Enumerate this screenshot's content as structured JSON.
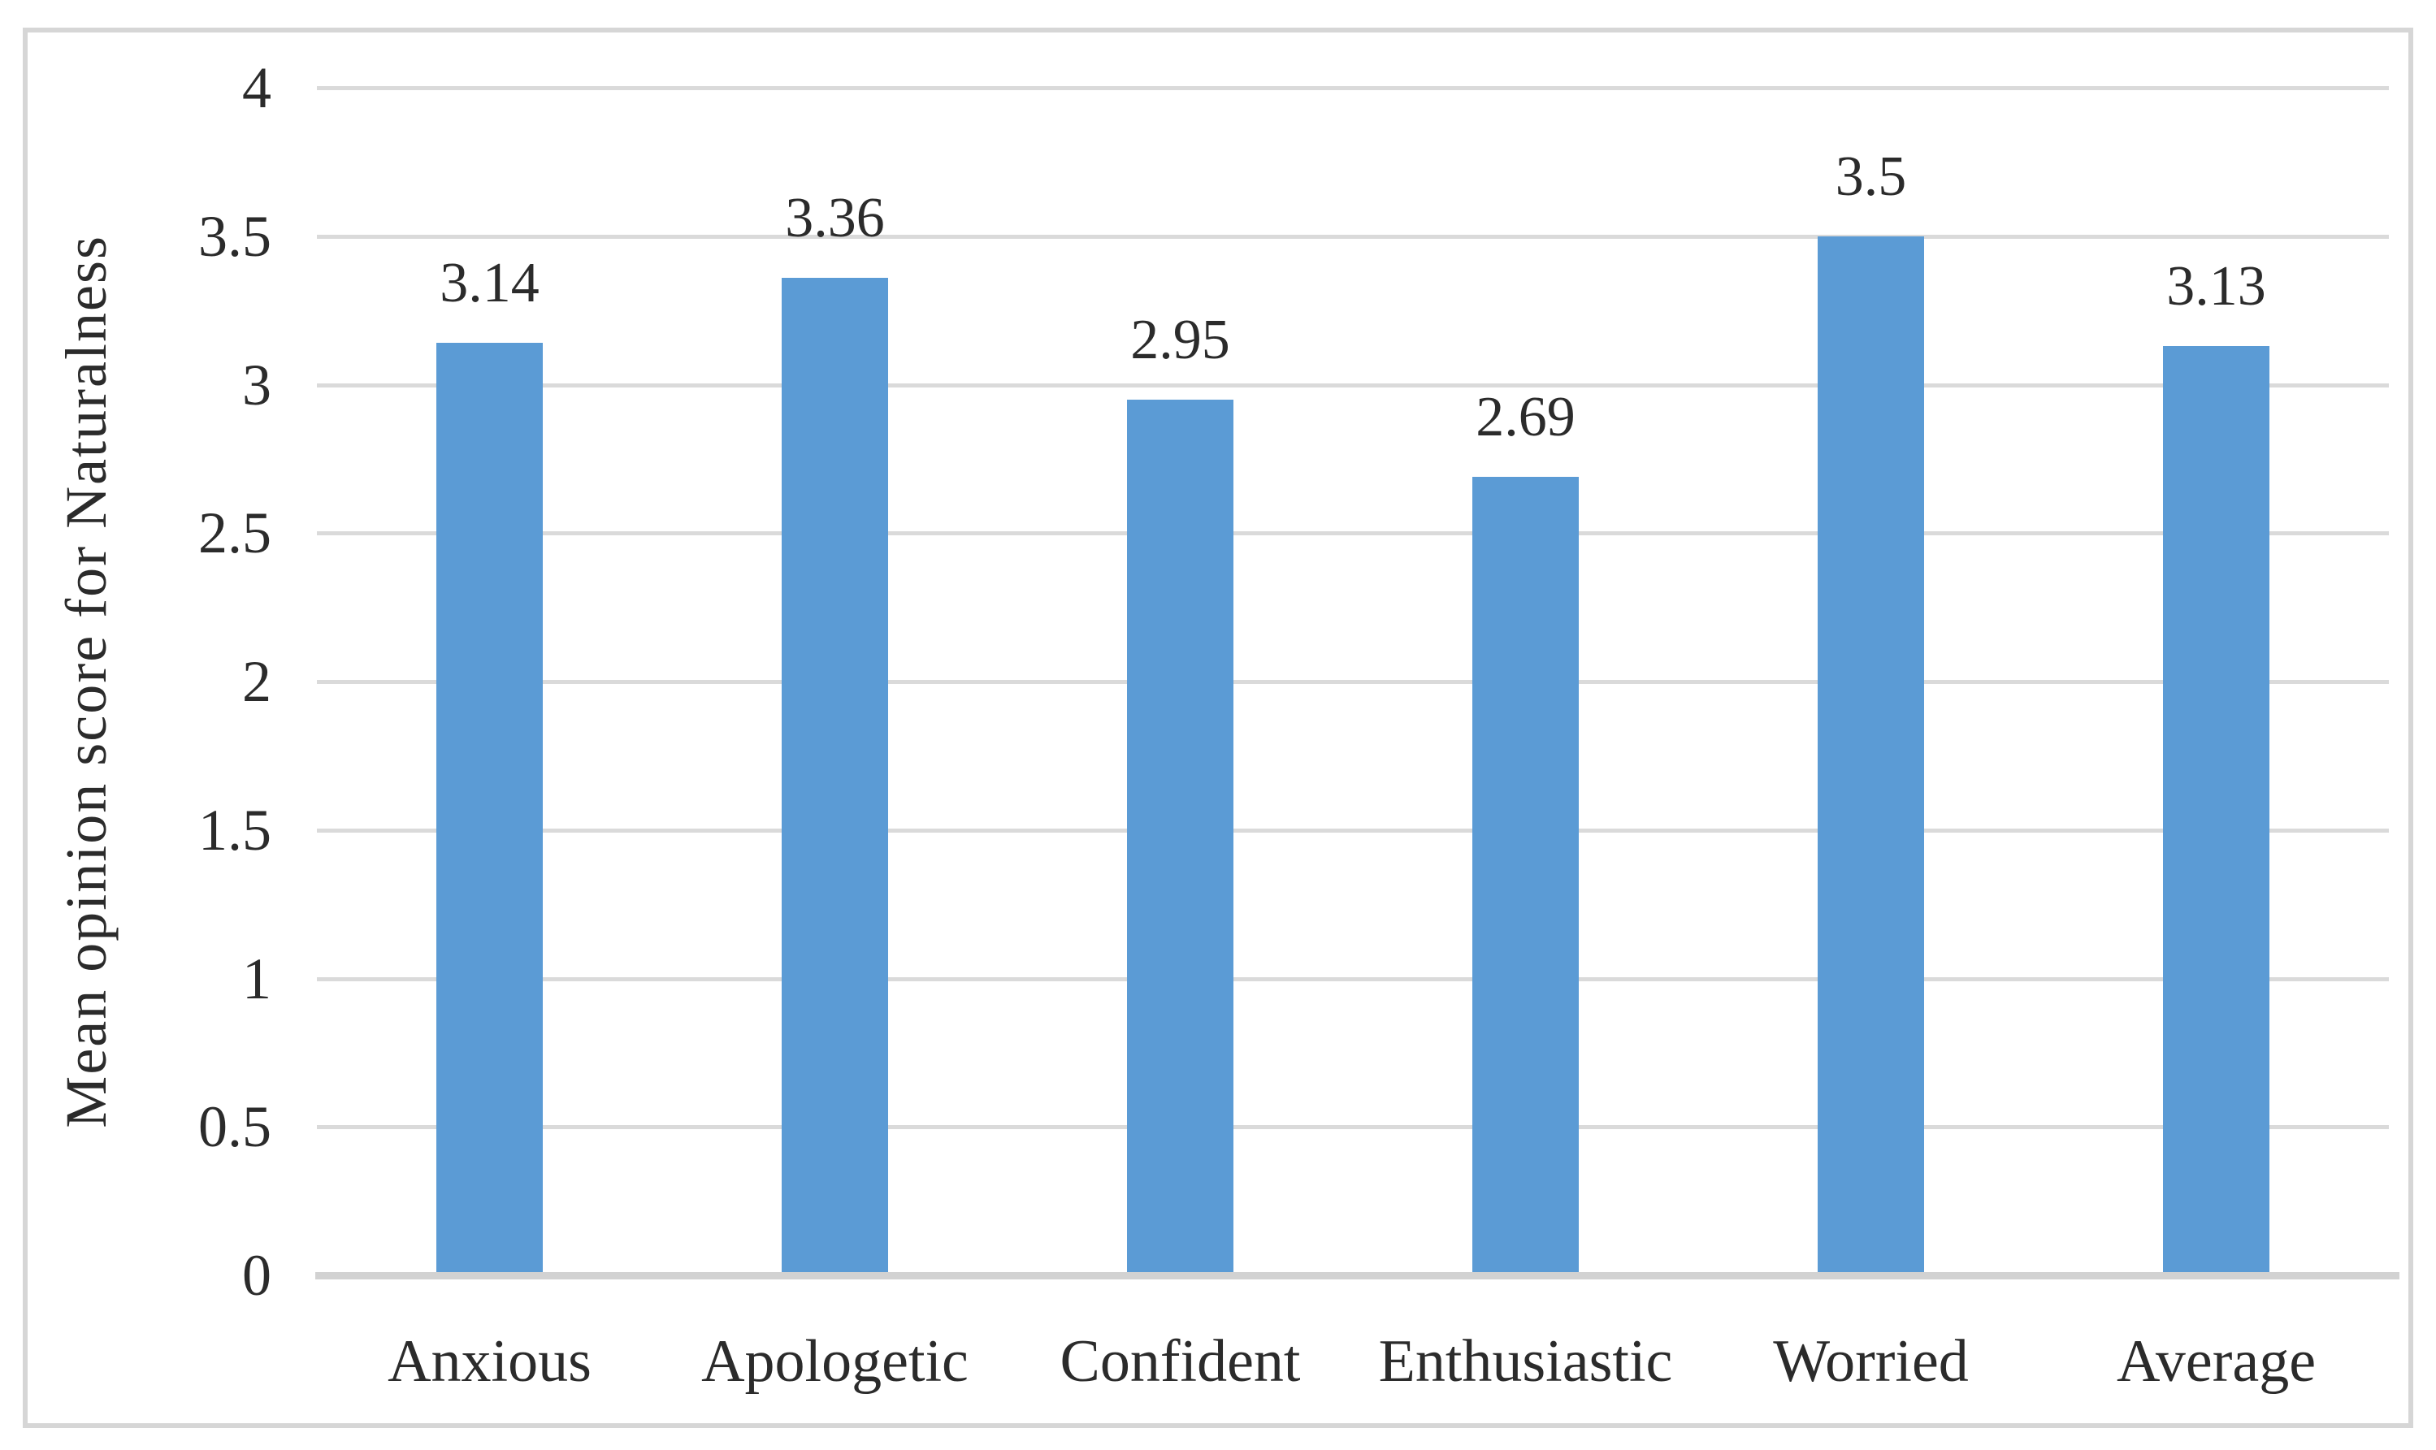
{
  "chart_data": {
    "type": "bar",
    "title": "",
    "categories": [
      "Anxious",
      "Apologetic",
      "Confident",
      "Enthusiastic",
      "Worried",
      "Average"
    ],
    "values": [
      3.14,
      3.36,
      2.95,
      2.69,
      3.5,
      3.13
    ],
    "data_labels": [
      "3.14",
      "3.36",
      "2.95",
      "2.69",
      "3.5",
      "3.13"
    ],
    "series_name": "Mean opinion score",
    "xlabel": "",
    "ylabel": "Mean opinion score for Naturalness",
    "ylim": [
      0,
      4
    ],
    "ytick_step": 0.5,
    "yticks": [
      "0",
      "0.5",
      "1",
      "1.5",
      "2",
      "2.5",
      "3",
      "3.5",
      "4"
    ],
    "grid": "horizontal-on",
    "legend": "none",
    "colors": {
      "bar": "#5B9BD5",
      "gridline": "#DADADA",
      "axis_line": "#D2D2D2",
      "frame_border": "#D6D6D6",
      "text": "#2B2B2B",
      "background": "#FFFFFF"
    }
  }
}
